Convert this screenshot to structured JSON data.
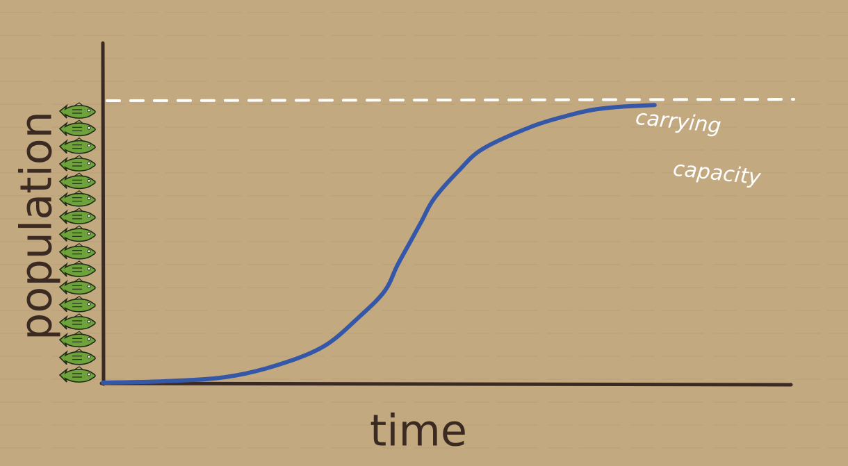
{
  "colors": {
    "background": "#c3a980",
    "axis": "#3b2a22",
    "curve": "#3557a7",
    "capacity_line": "#ffffff",
    "fish_body": "#6da33a",
    "fish_outline": "#1f2a14"
  },
  "icons": {
    "fish": "fish-icon",
    "fish_count": 16
  },
  "chart_data": {
    "type": "line",
    "title": "",
    "xlabel": "time",
    "ylabel": "population",
    "xlim": [
      0,
      100
    ],
    "ylim": [
      0,
      100
    ],
    "grid": false,
    "legend": "none",
    "annotation": {
      "text_line1": "carrying",
      "text_line2": "capacity",
      "style": "dashed"
    },
    "carrying_capacity": 100,
    "series": [
      {
        "x": [
          0,
          10,
          20,
          28,
          36,
          42,
          46,
          48,
          50,
          52,
          54,
          58,
          62,
          70,
          76,
          80,
          84,
          88,
          90
        ],
        "values": [
          0,
          0.5,
          2,
          6,
          13,
          24,
          33,
          42,
          50,
          58,
          66,
          76,
          84,
          92,
          96,
          98,
          99,
          99.5,
          99.7
        ]
      }
    ]
  }
}
